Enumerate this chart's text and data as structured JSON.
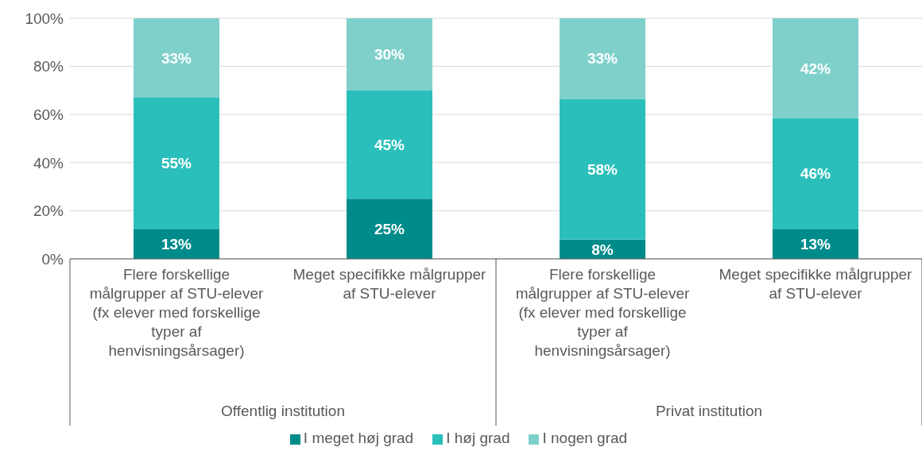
{
  "chart_data": {
    "type": "bar",
    "stacked": true,
    "categories": [
      "Flere forskellige målgrupper af STU-elever (fx elever med forskellige typer af henvisningsårsager)",
      "Meget specifikke målgrupper af STU-elever",
      "Flere forskellige målgrupper af STU-elever (fx elever med forskellige typer af henvisningsårsager)",
      "Meget specifikke målgrupper af STU-elever"
    ],
    "series": [
      {
        "name": "I meget høj grad",
        "color": "#008b8b",
        "values": [
          12.5,
          25,
          8,
          12.5
        ],
        "value_labels": [
          "13%",
          "25%",
          "8%",
          "13%"
        ]
      },
      {
        "name": "I høj grad",
        "color": "#2bbfbb",
        "values": [
          54.5,
          45,
          58.5,
          46
        ],
        "value_labels": [
          "55%",
          "45%",
          "58%",
          "46%"
        ]
      },
      {
        "name": "I nogen grad",
        "color": "#7fd0cb",
        "values": [
          33,
          30,
          33.5,
          41.5
        ],
        "value_labels": [
          "33%",
          "30%",
          "33%",
          "42%"
        ]
      }
    ],
    "ylim": [
      0,
      100
    ],
    "yticks": [
      {
        "value": 0,
        "label": "0%"
      },
      {
        "value": 20,
        "label": "20%"
      },
      {
        "value": 40,
        "label": "40%"
      },
      {
        "value": 60,
        "label": "60%"
      },
      {
        "value": 80,
        "label": "80%"
      },
      {
        "value": 100,
        "label": "100%"
      }
    ],
    "annotations": [
      "Offentlig institution",
      "Privat institution"
    ],
    "grid": "y",
    "legend": "bottom"
  }
}
